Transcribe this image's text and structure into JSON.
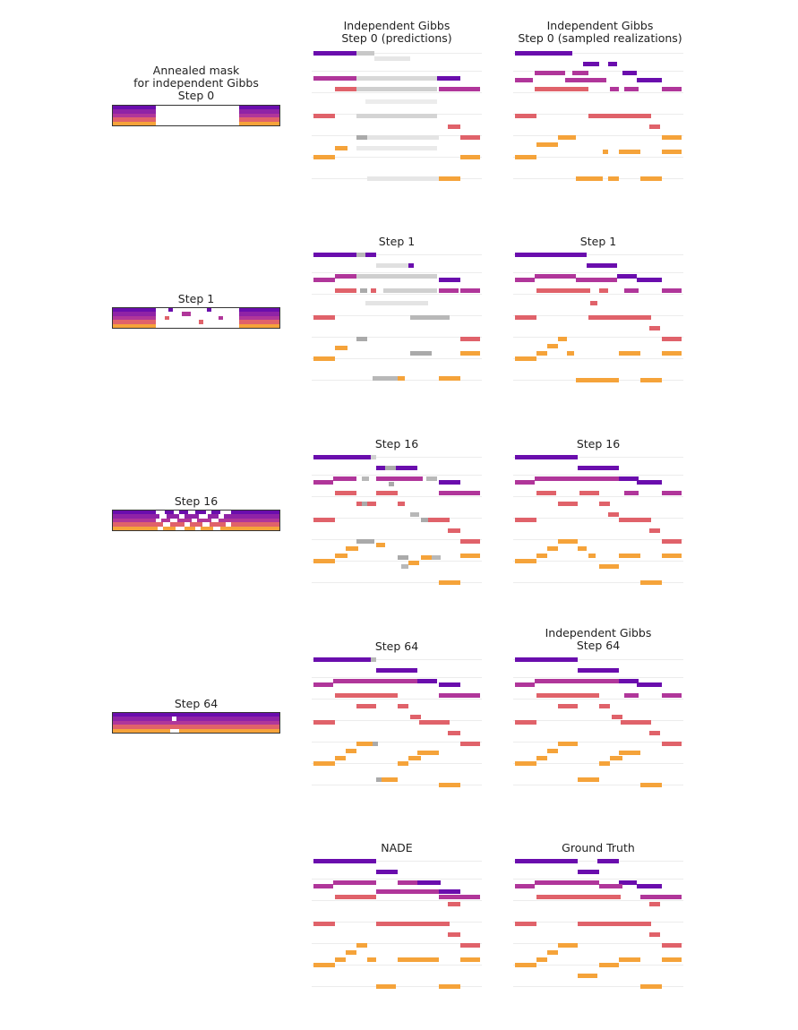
{
  "colors": {
    "soprano": "#6a0dad",
    "alto": "#b0369a",
    "tenor": "#e0626a",
    "bass": "#f5a33a",
    "uncertain": "#b8b8b8"
  },
  "headers": {
    "mask_step0": [
      "Annealed mask",
      "for independent Gibbs",
      "Step 0"
    ],
    "pred_step0": [
      "Independent Gibbs",
      "Step 0 (predictions)"
    ],
    "samp_step0": [
      "Independent Gibbs",
      "Step 0 (sampled realizations)"
    ],
    "mask_step1": "Step 1",
    "pred_step1": "Step 1",
    "samp_step1": "Step 1",
    "mask_step16": "Step 16",
    "pred_step16": "Step 16",
    "samp_step16": "Step 16",
    "mask_step64": "Step 64",
    "pred_step64": "Step 64",
    "samp_step64": [
      "Independent Gibbs",
      "Step 64"
    ],
    "nade": "NADE",
    "ground_truth": "Ground Truth"
  }
}
